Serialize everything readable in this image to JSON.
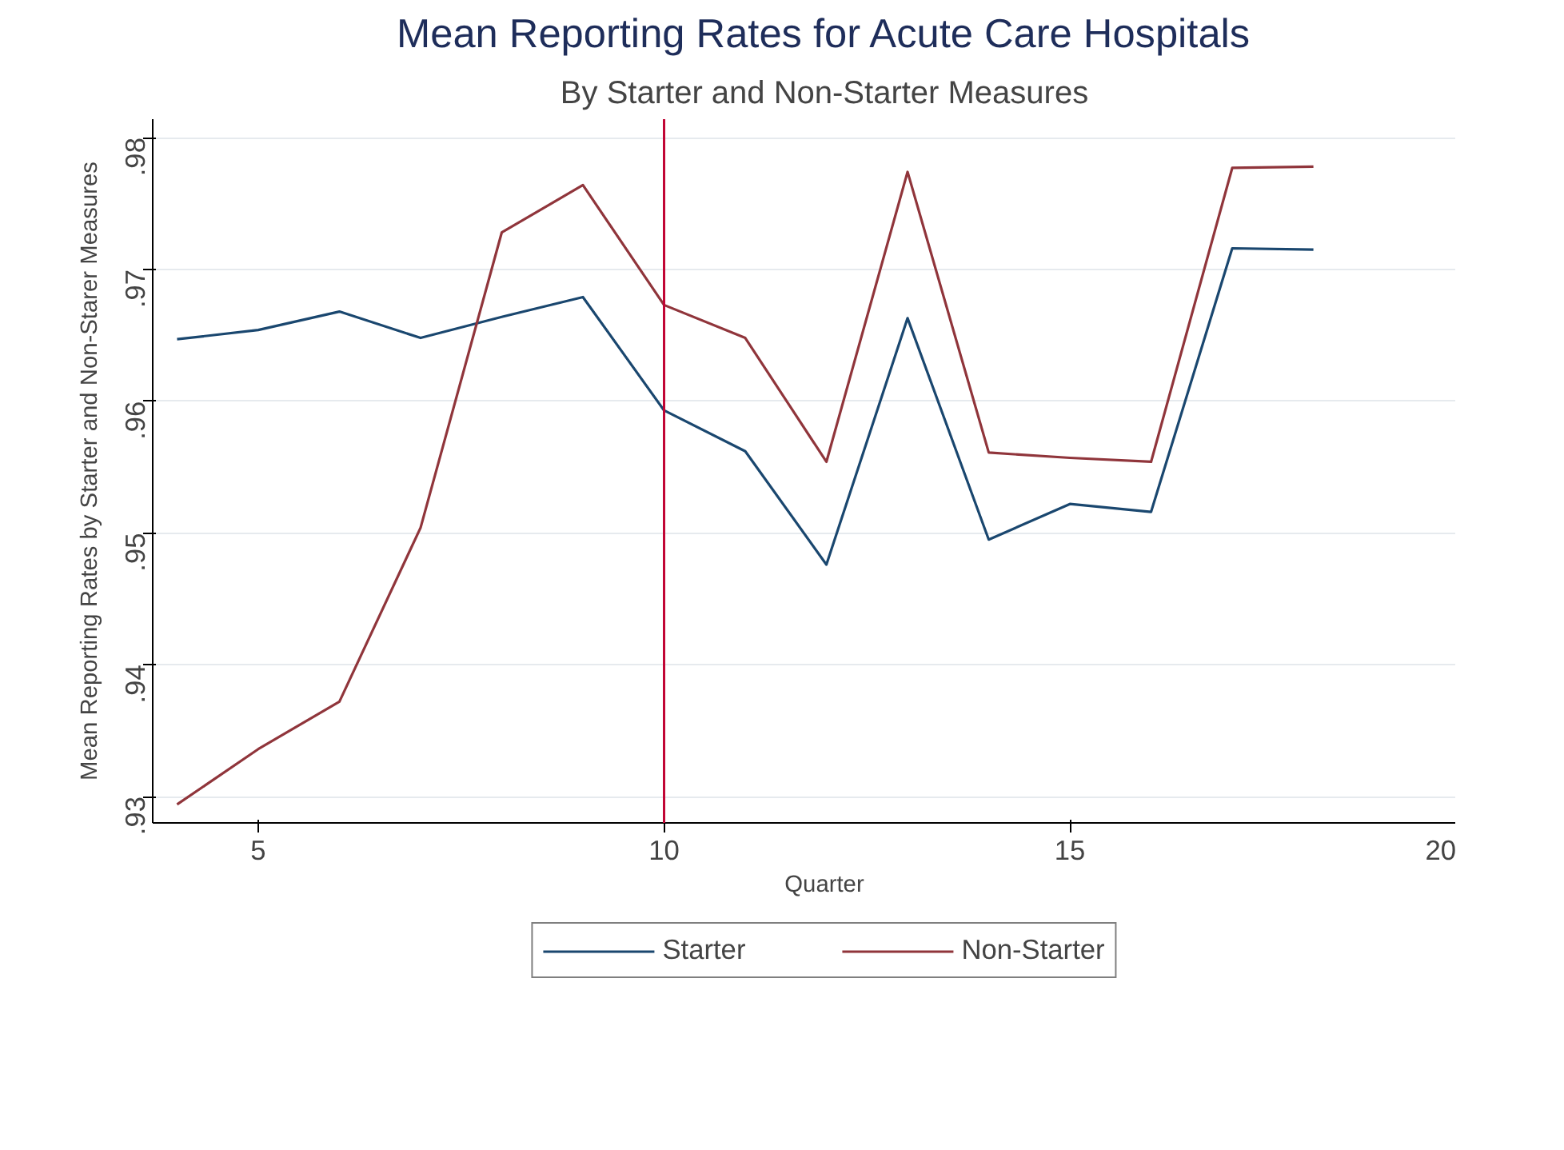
{
  "chart_data": {
    "type": "line",
    "title": "Mean Reporting Rates for Acute Care Hospitals",
    "subtitle": "By Starter and Non-Starter Measures",
    "xlabel": "Quarter",
    "ylabel": "Mean Reporting Rates by Starter and Non-Starer Measures",
    "x": [
      4,
      5,
      6,
      7,
      8,
      9,
      10,
      11,
      12,
      13,
      14,
      15,
      16,
      17,
      18
    ],
    "series": [
      {
        "name": "Starter",
        "color": "#1a476f",
        "values": [
          0.9647,
          0.9654,
          0.9668,
          0.9648,
          0.9664,
          0.9679,
          0.9593,
          0.9562,
          0.9476,
          0.9663,
          0.9495,
          0.9522,
          0.9516,
          0.9716,
          0.9715
        ]
      },
      {
        "name": "Non-Starter",
        "color": "#90353b",
        "values": [
          0.9294,
          0.9336,
          0.9372,
          0.9504,
          0.9728,
          0.9764,
          0.9673,
          0.9648,
          0.9554,
          0.9774,
          0.9561,
          0.9557,
          0.9554,
          0.9777,
          0.9778
        ]
      }
    ],
    "xlim": [
      3.7,
      20.25
    ],
    "xticks": [
      5,
      10,
      15,
      20
    ],
    "ylim": [
      0.928,
      0.9814
    ],
    "yticks": [
      {
        "value": 0.93,
        "label": ".93"
      },
      {
        "value": 0.94,
        "label": ".94"
      },
      {
        "value": 0.95,
        "label": ".95"
      },
      {
        "value": 0.96,
        "label": ".96"
      },
      {
        "value": 0.97,
        "label": ".97"
      },
      {
        "value": 0.98,
        "label": ".98"
      }
    ],
    "ref_lines": [
      {
        "axis": "x",
        "value": 10,
        "color": "#c10534"
      }
    ],
    "grid": "y",
    "legend": "bottom",
    "marker": "none",
    "line_style": "solid"
  }
}
